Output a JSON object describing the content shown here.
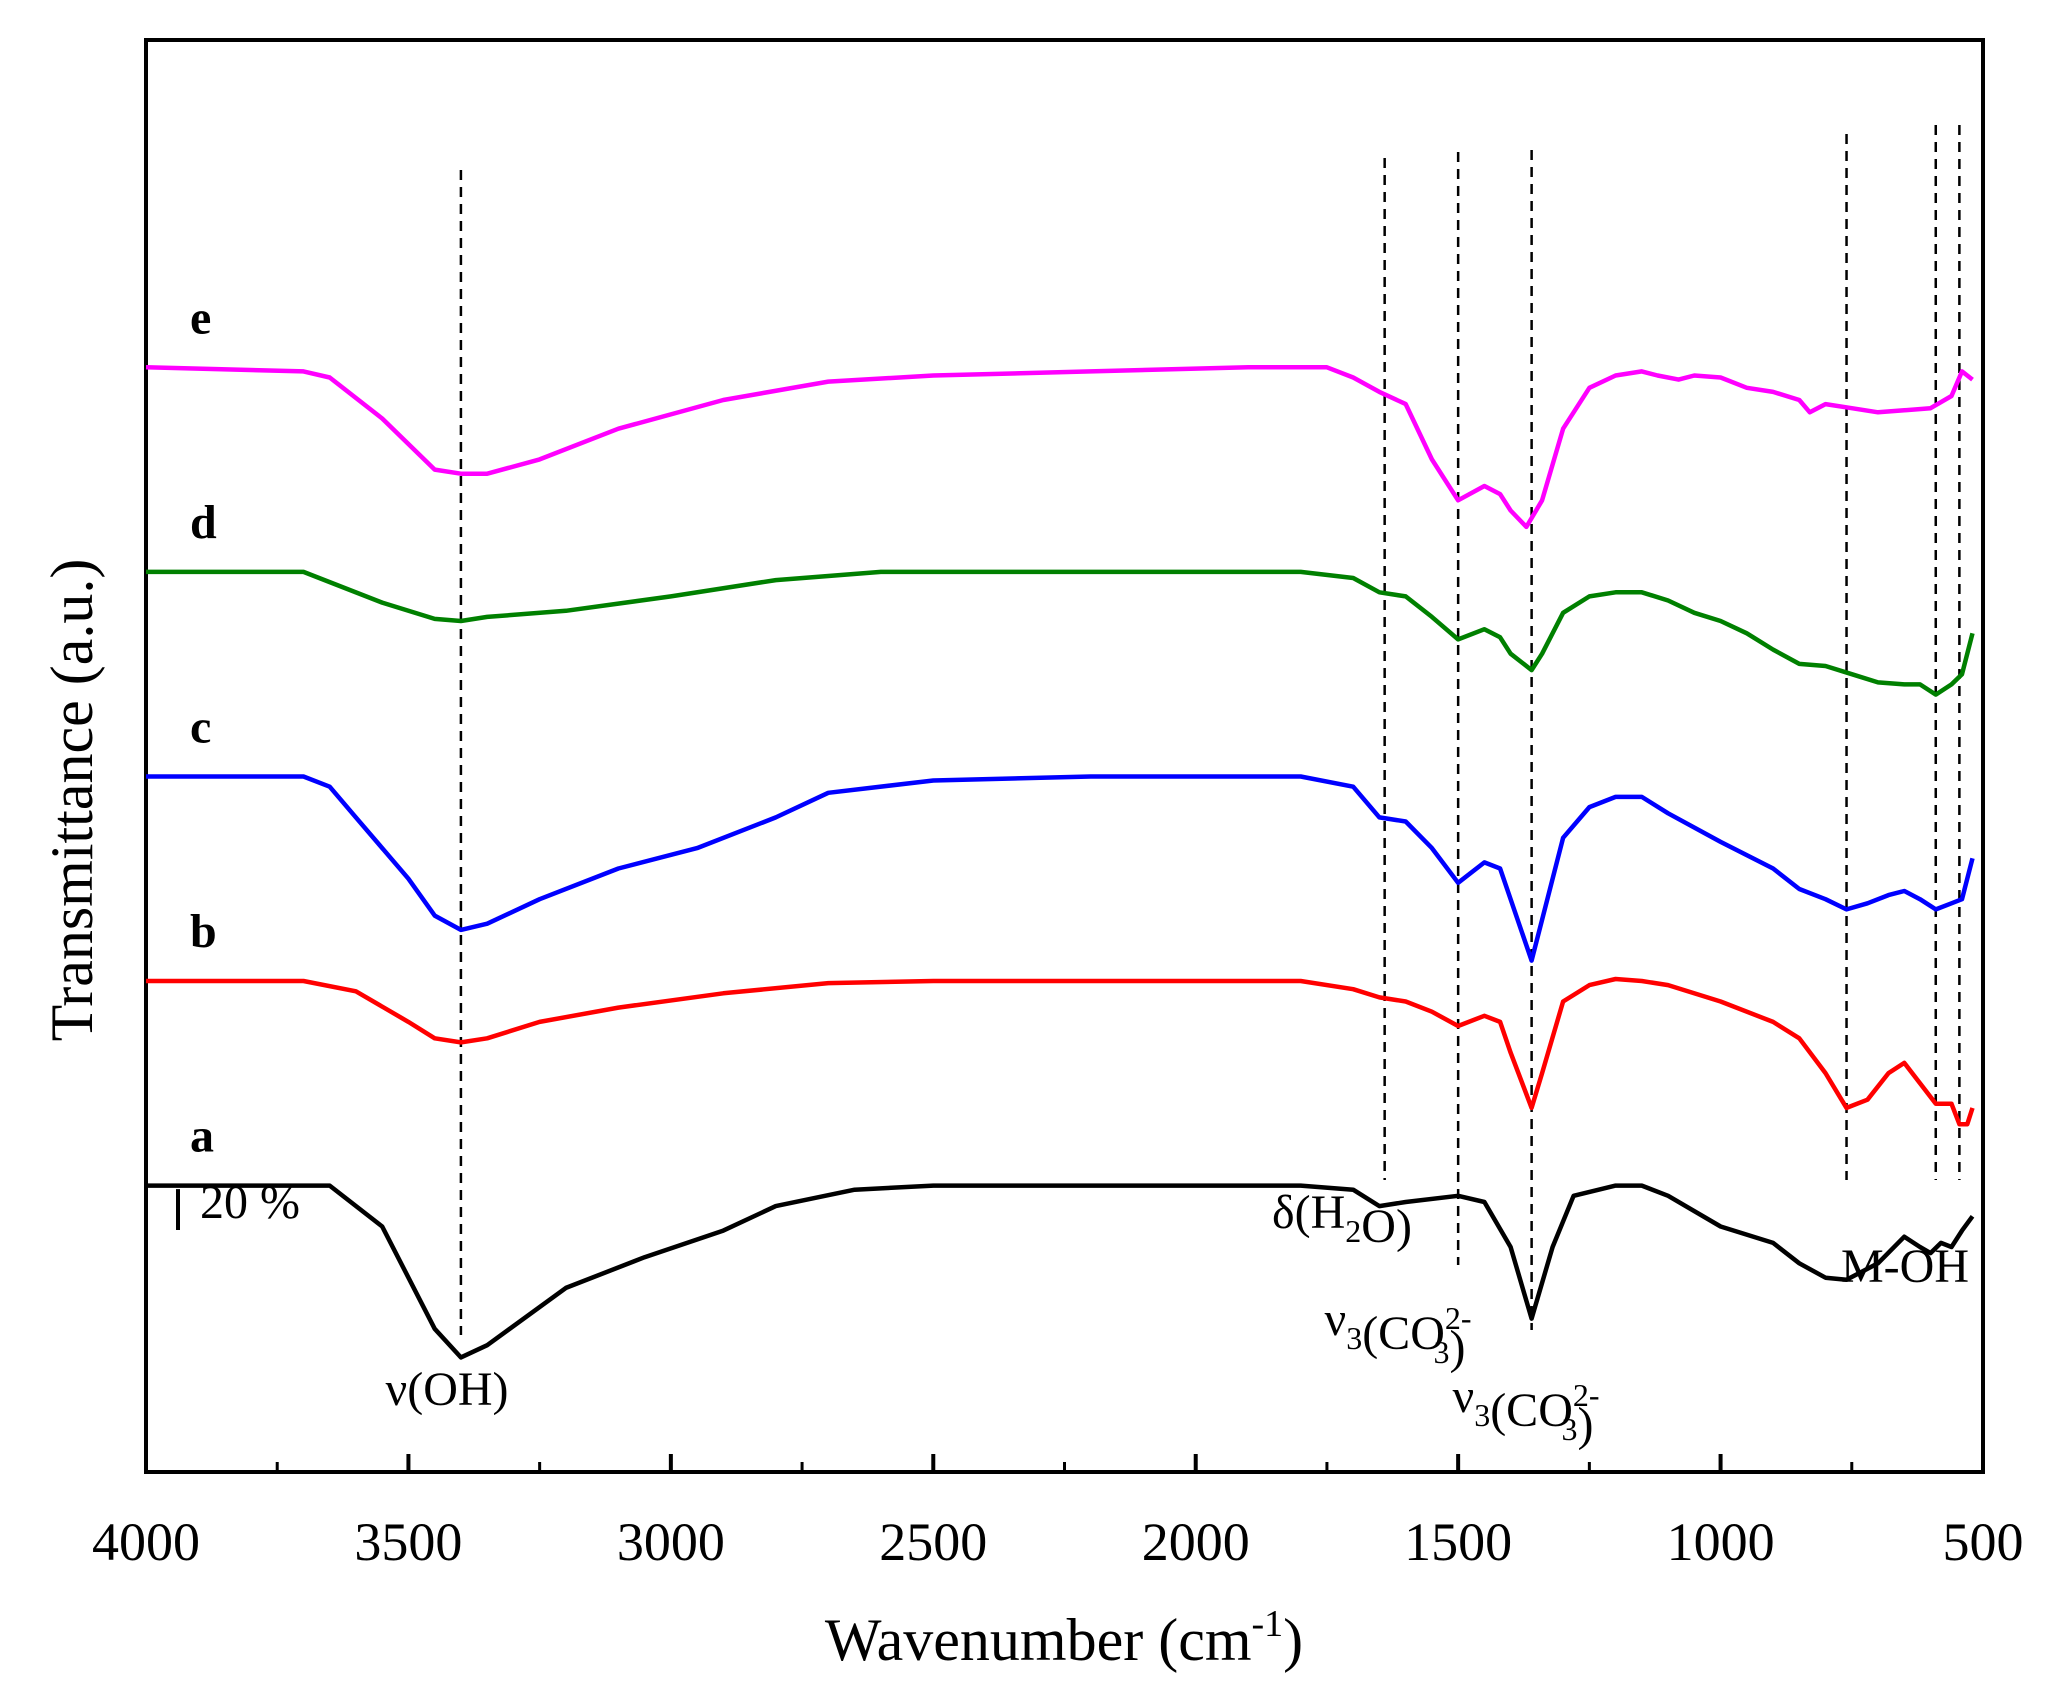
{
  "chart_data": {
    "type": "line",
    "title": "",
    "xlabel": "Wavenumber (cm",
    "xlabel_sup": "-1",
    "xlabel_close": ")",
    "ylabel": "Transmittance (a.u.)",
    "xlim": [
      4000,
      500
    ],
    "x_inverted": true,
    "ylim": [
      -1.4,
      5.6
    ],
    "x_ticks": [
      4000,
      3500,
      3000,
      2500,
      2000,
      1500,
      1000,
      500
    ],
    "x_tick_labels": [
      "4000",
      "3500",
      "3000",
      "2500",
      "2000",
      "1500",
      "1000",
      "500"
    ],
    "y_ticks_shown": false,
    "scale_bar_label": "20 %",
    "scale_bar_value": 0.2,
    "series": [
      {
        "name": "a",
        "color": "#000000",
        "points": [
          [
            4000,
            0
          ],
          [
            3650,
            0
          ],
          [
            3550,
            -0.2
          ],
          [
            3450,
            -0.7
          ],
          [
            3400,
            -0.84
          ],
          [
            3350,
            -0.78
          ],
          [
            3200,
            -0.5
          ],
          [
            3050,
            -0.35
          ],
          [
            2900,
            -0.22
          ],
          [
            2800,
            -0.1
          ],
          [
            2650,
            -0.02
          ],
          [
            2500,
            0
          ],
          [
            1800,
            0
          ],
          [
            1700,
            -0.02
          ],
          [
            1650,
            -0.1
          ],
          [
            1600,
            -0.08
          ],
          [
            1500,
            -0.05
          ],
          [
            1450,
            -0.08
          ],
          [
            1400,
            -0.3
          ],
          [
            1360,
            -0.65
          ],
          [
            1320,
            -0.3
          ],
          [
            1280,
            -0.05
          ],
          [
            1200,
            0
          ],
          [
            1150,
            0
          ],
          [
            1100,
            -0.05
          ],
          [
            1000,
            -0.2
          ],
          [
            900,
            -0.28
          ],
          [
            850,
            -0.38
          ],
          [
            800,
            -0.45
          ],
          [
            760,
            -0.46
          ],
          [
            700,
            -0.38
          ],
          [
            650,
            -0.25
          ],
          [
            620,
            -0.3
          ],
          [
            600,
            -0.33
          ],
          [
            580,
            -0.28
          ],
          [
            560,
            -0.3
          ],
          [
            540,
            -0.22
          ],
          [
            520,
            -0.15
          ]
        ]
      },
      {
        "name": "b",
        "color": "#ff0000",
        "points": [
          [
            4000,
            1
          ],
          [
            3700,
            1
          ],
          [
            3600,
            0.95
          ],
          [
            3500,
            0.8
          ],
          [
            3450,
            0.72
          ],
          [
            3400,
            0.7
          ],
          [
            3350,
            0.72
          ],
          [
            3250,
            0.8
          ],
          [
            3100,
            0.87
          ],
          [
            2900,
            0.94
          ],
          [
            2700,
            0.99
          ],
          [
            2500,
            1
          ],
          [
            1800,
            1
          ],
          [
            1700,
            0.96
          ],
          [
            1650,
            0.92
          ],
          [
            1600,
            0.9
          ],
          [
            1550,
            0.85
          ],
          [
            1500,
            0.78
          ],
          [
            1450,
            0.83
          ],
          [
            1420,
            0.8
          ],
          [
            1400,
            0.65
          ],
          [
            1360,
            0.38
          ],
          [
            1340,
            0.55
          ],
          [
            1300,
            0.9
          ],
          [
            1250,
            0.98
          ],
          [
            1200,
            1.01
          ],
          [
            1150,
            1
          ],
          [
            1100,
            0.98
          ],
          [
            1000,
            0.9
          ],
          [
            900,
            0.8
          ],
          [
            850,
            0.72
          ],
          [
            800,
            0.55
          ],
          [
            760,
            0.38
          ],
          [
            720,
            0.42
          ],
          [
            680,
            0.55
          ],
          [
            650,
            0.6
          ],
          [
            620,
            0.5
          ],
          [
            590,
            0.4
          ],
          [
            560,
            0.4
          ],
          [
            545,
            0.3
          ],
          [
            530,
            0.3
          ],
          [
            520,
            0.38
          ]
        ]
      },
      {
        "name": "c",
        "color": "#0000ff",
        "points": [
          [
            4000,
            2
          ],
          [
            3700,
            2
          ],
          [
            3650,
            1.95
          ],
          [
            3600,
            1.8
          ],
          [
            3500,
            1.5
          ],
          [
            3450,
            1.32
          ],
          [
            3400,
            1.25
          ],
          [
            3350,
            1.28
          ],
          [
            3250,
            1.4
          ],
          [
            3100,
            1.55
          ],
          [
            2950,
            1.65
          ],
          [
            2800,
            1.8
          ],
          [
            2700,
            1.92
          ],
          [
            2500,
            1.98
          ],
          [
            2200,
            2
          ],
          [
            1800,
            2
          ],
          [
            1700,
            1.95
          ],
          [
            1650,
            1.8
          ],
          [
            1600,
            1.78
          ],
          [
            1550,
            1.65
          ],
          [
            1500,
            1.48
          ],
          [
            1450,
            1.58
          ],
          [
            1420,
            1.55
          ],
          [
            1400,
            1.4
          ],
          [
            1360,
            1.1
          ],
          [
            1340,
            1.3
          ],
          [
            1300,
            1.7
          ],
          [
            1250,
            1.85
          ],
          [
            1200,
            1.9
          ],
          [
            1150,
            1.9
          ],
          [
            1100,
            1.82
          ],
          [
            1000,
            1.68
          ],
          [
            900,
            1.55
          ],
          [
            850,
            1.45
          ],
          [
            800,
            1.4
          ],
          [
            760,
            1.35
          ],
          [
            720,
            1.38
          ],
          [
            680,
            1.42
          ],
          [
            650,
            1.44
          ],
          [
            620,
            1.4
          ],
          [
            590,
            1.35
          ],
          [
            560,
            1.38
          ],
          [
            540,
            1.4
          ],
          [
            520,
            1.6
          ]
        ]
      },
      {
        "name": "d",
        "color": "#008000",
        "points": [
          [
            4000,
            3
          ],
          [
            3700,
            3
          ],
          [
            3650,
            2.95
          ],
          [
            3550,
            2.85
          ],
          [
            3450,
            2.77
          ],
          [
            3400,
            2.76
          ],
          [
            3350,
            2.78
          ],
          [
            3200,
            2.81
          ],
          [
            3000,
            2.88
          ],
          [
            2800,
            2.96
          ],
          [
            2600,
            3
          ],
          [
            1800,
            3
          ],
          [
            1700,
            2.97
          ],
          [
            1650,
            2.9
          ],
          [
            1600,
            2.88
          ],
          [
            1550,
            2.78
          ],
          [
            1500,
            2.67
          ],
          [
            1450,
            2.72
          ],
          [
            1420,
            2.68
          ],
          [
            1400,
            2.6
          ],
          [
            1360,
            2.52
          ],
          [
            1340,
            2.6
          ],
          [
            1300,
            2.8
          ],
          [
            1250,
            2.88
          ],
          [
            1200,
            2.9
          ],
          [
            1150,
            2.9
          ],
          [
            1100,
            2.86
          ],
          [
            1050,
            2.8
          ],
          [
            1000,
            2.76
          ],
          [
            950,
            2.7
          ],
          [
            900,
            2.62
          ],
          [
            850,
            2.55
          ],
          [
            800,
            2.54
          ],
          [
            750,
            2.5
          ],
          [
            700,
            2.46
          ],
          [
            650,
            2.45
          ],
          [
            620,
            2.45
          ],
          [
            590,
            2.4
          ],
          [
            560,
            2.45
          ],
          [
            540,
            2.5
          ],
          [
            520,
            2.7
          ]
        ]
      },
      {
        "name": "e",
        "color": "#ff00ff",
        "points": [
          [
            4000,
            4
          ],
          [
            3700,
            3.98
          ],
          [
            3650,
            3.95
          ],
          [
            3550,
            3.75
          ],
          [
            3450,
            3.5
          ],
          [
            3400,
            3.48
          ],
          [
            3350,
            3.48
          ],
          [
            3250,
            3.55
          ],
          [
            3100,
            3.7
          ],
          [
            2900,
            3.84
          ],
          [
            2700,
            3.93
          ],
          [
            2500,
            3.96
          ],
          [
            2200,
            3.98
          ],
          [
            1900,
            4
          ],
          [
            1750,
            4
          ],
          [
            1700,
            3.95
          ],
          [
            1650,
            3.88
          ],
          [
            1600,
            3.82
          ],
          [
            1550,
            3.55
          ],
          [
            1500,
            3.35
          ],
          [
            1450,
            3.42
          ],
          [
            1420,
            3.38
          ],
          [
            1400,
            3.3
          ],
          [
            1370,
            3.22
          ],
          [
            1340,
            3.35
          ],
          [
            1300,
            3.7
          ],
          [
            1250,
            3.9
          ],
          [
            1200,
            3.96
          ],
          [
            1150,
            3.98
          ],
          [
            1120,
            3.96
          ],
          [
            1080,
            3.94
          ],
          [
            1050,
            3.96
          ],
          [
            1000,
            3.95
          ],
          [
            950,
            3.9
          ],
          [
            900,
            3.88
          ],
          [
            850,
            3.84
          ],
          [
            830,
            3.78
          ],
          [
            800,
            3.82
          ],
          [
            750,
            3.8
          ],
          [
            700,
            3.78
          ],
          [
            650,
            3.79
          ],
          [
            600,
            3.8
          ],
          [
            560,
            3.86
          ],
          [
            540,
            3.98
          ],
          [
            520,
            3.94
          ]
        ]
      }
    ],
    "dashed_lines": [
      3400,
      1640,
      1500,
      1360,
      760,
      590,
      545
    ],
    "annotations": [
      {
        "id": "v-oh",
        "parts": [
          [
            "v",
            "ν"
          ],
          [
            "t",
            "(OH)"
          ]
        ]
      },
      {
        "id": "delta-h2o",
        "parts": [
          [
            "t",
            "δ(H"
          ],
          [
            "sub",
            "2"
          ],
          [
            "t",
            "O)"
          ]
        ]
      },
      {
        "id": "v3-co3-1500",
        "parts": [
          [
            "t",
            "ν"
          ],
          [
            "sub",
            "3"
          ],
          [
            "t",
            "(CO"
          ],
          [
            "supsub",
            "2-",
            "3"
          ],
          [
            "t",
            ")"
          ]
        ]
      },
      {
        "id": "v3-co3-1360",
        "parts": [
          [
            "t",
            "ν"
          ],
          [
            "sub",
            "3"
          ],
          [
            "t",
            "(CO"
          ],
          [
            "supsub",
            "2-",
            "3"
          ],
          [
            "t",
            ")"
          ]
        ]
      },
      {
        "id": "m-oh",
        "parts": [
          [
            "t",
            "M-OH"
          ]
        ]
      }
    ]
  }
}
